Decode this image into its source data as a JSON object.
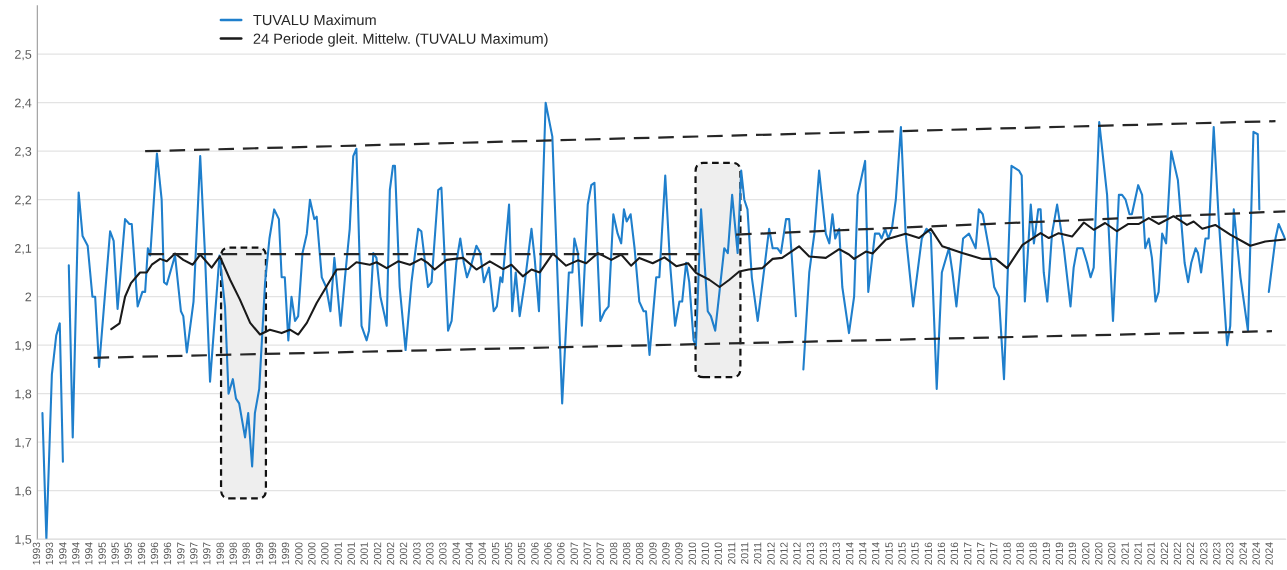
{
  "chart_data": {
    "type": "line",
    "xlim": [
      1993,
      2024.73
    ],
    "ylim": [
      1.5,
      2.6
    ],
    "yticks": [
      {
        "value": 1.5,
        "label": "1,5"
      },
      {
        "value": 1.6,
        "label": "1,6"
      },
      {
        "value": 1.7,
        "label": "1,7"
      },
      {
        "value": 1.8,
        "label": "1,8"
      },
      {
        "value": 1.9,
        "label": "1,9"
      },
      {
        "value": 2,
        "label": "2"
      },
      {
        "value": 2.1,
        "label": "2,1"
      },
      {
        "value": 2.2,
        "label": "2,2"
      },
      {
        "value": 2.3,
        "label": "2,3"
      },
      {
        "value": 2.4,
        "label": "2,4"
      },
      {
        "value": 2.5,
        "label": "2,5"
      }
    ],
    "xticks": [
      {
        "value": 1993,
        "label": "1993"
      },
      {
        "value": 1993.33,
        "label": "1993"
      },
      {
        "value": 1993.67,
        "label": "1994"
      },
      {
        "value": 1994,
        "label": "1994"
      },
      {
        "value": 1994.33,
        "label": "1994"
      },
      {
        "value": 1994.67,
        "label": "1995"
      },
      {
        "value": 1995,
        "label": "1995"
      },
      {
        "value": 1995.33,
        "label": "1995"
      },
      {
        "value": 1995.67,
        "label": "1996"
      },
      {
        "value": 1996,
        "label": "1996"
      },
      {
        "value": 1996.33,
        "label": "1996"
      },
      {
        "value": 1996.67,
        "label": "1997"
      },
      {
        "value": 1997,
        "label": "1997"
      },
      {
        "value": 1997.33,
        "label": "1997"
      },
      {
        "value": 1997.67,
        "label": "1998"
      },
      {
        "value": 1998,
        "label": "1998"
      },
      {
        "value": 1998.33,
        "label": "1998"
      },
      {
        "value": 1998.67,
        "label": "1999"
      },
      {
        "value": 1999,
        "label": "1999"
      },
      {
        "value": 1999.33,
        "label": "1999"
      },
      {
        "value": 1999.67,
        "label": "2000"
      },
      {
        "value": 2000,
        "label": "2000"
      },
      {
        "value": 2000.33,
        "label": "2000"
      },
      {
        "value": 2000.67,
        "label": "2001"
      },
      {
        "value": 2001,
        "label": "2001"
      },
      {
        "value": 2001.33,
        "label": "2001"
      },
      {
        "value": 2001.67,
        "label": "2002"
      },
      {
        "value": 2002,
        "label": "2002"
      },
      {
        "value": 2002.33,
        "label": "2002"
      },
      {
        "value": 2002.67,
        "label": "2003"
      },
      {
        "value": 2003,
        "label": "2003"
      },
      {
        "value": 2003.33,
        "label": "2003"
      },
      {
        "value": 2003.67,
        "label": "2004"
      },
      {
        "value": 2004,
        "label": "2004"
      },
      {
        "value": 2004.33,
        "label": "2004"
      },
      {
        "value": 2004.67,
        "label": "2005"
      },
      {
        "value": 2005,
        "label": "2005"
      },
      {
        "value": 2005.33,
        "label": "2005"
      },
      {
        "value": 2005.67,
        "label": "2006"
      },
      {
        "value": 2006,
        "label": "2006"
      },
      {
        "value": 2006.33,
        "label": "2006"
      },
      {
        "value": 2006.67,
        "label": "2007"
      },
      {
        "value": 2007,
        "label": "2007"
      },
      {
        "value": 2007.33,
        "label": "2007"
      },
      {
        "value": 2007.67,
        "label": "2008"
      },
      {
        "value": 2008,
        "label": "2008"
      },
      {
        "value": 2008.33,
        "label": "2008"
      },
      {
        "value": 2008.67,
        "label": "2009"
      },
      {
        "value": 2009,
        "label": "2009"
      },
      {
        "value": 2009.33,
        "label": "2009"
      },
      {
        "value": 2009.67,
        "label": "2010"
      },
      {
        "value": 2010,
        "label": "2010"
      },
      {
        "value": 2010.33,
        "label": "2010"
      },
      {
        "value": 2010.67,
        "label": "2011"
      },
      {
        "value": 2011,
        "label": "2011"
      },
      {
        "value": 2011.33,
        "label": "2011"
      },
      {
        "value": 2011.67,
        "label": "2012"
      },
      {
        "value": 2012,
        "label": "2012"
      },
      {
        "value": 2012.33,
        "label": "2012"
      },
      {
        "value": 2012.67,
        "label": "2013"
      },
      {
        "value": 2013,
        "label": "2013"
      },
      {
        "value": 2013.33,
        "label": "2013"
      },
      {
        "value": 2013.67,
        "label": "2014"
      },
      {
        "value": 2014,
        "label": "2014"
      },
      {
        "value": 2014.33,
        "label": "2014"
      },
      {
        "value": 2014.67,
        "label": "2015"
      },
      {
        "value": 2015,
        "label": "2015"
      },
      {
        "value": 2015.33,
        "label": "2015"
      },
      {
        "value": 2015.67,
        "label": "2016"
      },
      {
        "value": 2016,
        "label": "2016"
      },
      {
        "value": 2016.33,
        "label": "2016"
      },
      {
        "value": 2016.67,
        "label": "2017"
      },
      {
        "value": 2017,
        "label": "2017"
      },
      {
        "value": 2017.33,
        "label": "2017"
      },
      {
        "value": 2017.67,
        "label": "2018"
      },
      {
        "value": 2018,
        "label": "2018"
      },
      {
        "value": 2018.33,
        "label": "2018"
      },
      {
        "value": 2018.67,
        "label": "2019"
      },
      {
        "value": 2019,
        "label": "2019"
      },
      {
        "value": 2019.33,
        "label": "2019"
      },
      {
        "value": 2019.67,
        "label": "2020"
      },
      {
        "value": 2020,
        "label": "2020"
      },
      {
        "value": 2020.33,
        "label": "2020"
      },
      {
        "value": 2020.67,
        "label": "2021"
      },
      {
        "value": 2021,
        "label": "2021"
      },
      {
        "value": 2021.33,
        "label": "2021"
      },
      {
        "value": 2021.67,
        "label": "2022"
      },
      {
        "value": 2022,
        "label": "2022"
      },
      {
        "value": 2022.33,
        "label": "2022"
      },
      {
        "value": 2022.67,
        "label": "2023"
      },
      {
        "value": 2023,
        "label": "2023"
      },
      {
        "value": 2023.33,
        "label": "2023"
      },
      {
        "value": 2023.67,
        "label": "2024"
      },
      {
        "value": 2024,
        "label": "2024"
      },
      {
        "value": 2024.33,
        "label": "2024"
      }
    ],
    "grid": "y",
    "legend": "top left",
    "line_style": "solid",
    "series": [
      {
        "name": "TUVALU Maximum",
        "color": "#1f7fcc",
        "x": [
          1993.13,
          1993.23,
          1993.37,
          1993.48,
          1993.57,
          1993.65,
          1993.72,
          1993.8,
          1993.9,
          1994.05,
          1994.15,
          1994.28,
          1994.4,
          1994.47,
          1994.57,
          1994.85,
          1994.94,
          1995.04,
          1995.23,
          1995.34,
          1995.4,
          1995.55,
          1995.67,
          1995.74,
          1995.81,
          1995.87,
          1996.04,
          1996.16,
          1996.22,
          1996.29,
          1996.5,
          1996.65,
          1996.71,
          1996.8,
          1996.97,
          1997.14,
          1997.26,
          1997.39,
          1997.63,
          1997.77,
          1997.86,
          1997.97,
          1998.05,
          1998.13,
          1998.28,
          1998.36,
          1998.46,
          1998.53,
          1998.64,
          1998.79,
          1998.9,
          1999.02,
          1999.14,
          1999.21,
          1999.29,
          1999.38,
          1999.46,
          1999.55,
          1999.63,
          1999.74,
          1999.85,
          1999.93,
          2000.04,
          2000.1,
          2000.23,
          2000.34,
          2000.45,
          2000.55,
          2000.61,
          2000.71,
          2000.82,
          2000.94,
          2001.03,
          2001.11,
          2001.24,
          2001.37,
          2001.43,
          2001.54,
          2001.62,
          2001.72,
          2001.83,
          2001.88,
          2001.96,
          2002.04,
          2002.09,
          2002.21,
          2002.36,
          2002.51,
          2002.68,
          2002.76,
          2002.93,
          2003.02,
          2003.19,
          2003.27,
          2003.44,
          2003.53,
          2003.65,
          2003.75,
          2003.84,
          2003.92,
          2004.01,
          2004.16,
          2004.26,
          2004.35,
          2004.48,
          2004.6,
          2004.68,
          2004.77,
          2004.82,
          2004.99,
          2005.07,
          2005.16,
          2005.26,
          2005.39,
          2005.56,
          2005.64,
          2005.75,
          2005.92,
          2006.09,
          2006.34,
          2006.51,
          2006.6,
          2006.65,
          2006.74,
          2006.84,
          2006.99,
          2007.08,
          2007.16,
          2007.31,
          2007.42,
          2007.52,
          2007.64,
          2007.75,
          2007.84,
          2007.91,
          2007.98,
          2008.08,
          2008.18,
          2008.3,
          2008.41,
          2008.47,
          2008.56,
          2008.73,
          2008.81,
          2008.96,
          2009.08,
          2009.21,
          2009.32,
          2009.39,
          2009.49,
          2009.57,
          2009.68,
          2009.74,
          2009.87,
          2010.04,
          2010.12,
          2010.23,
          2010.46,
          2010.55,
          2010.66,
          2010.8,
          2010.89,
          2010.97,
          2011.05,
          2011.16,
          2011.31,
          2011.48,
          2011.6,
          2011.69,
          2011.81,
          2011.9,
          2012.03,
          2012.11,
          2012.28,
          2012.38,
          2012.47,
          2012.62,
          2012.75,
          2012.87,
          2013.04,
          2013.13,
          2013.21,
          2013.28,
          2013.38,
          2013.46,
          2013.63,
          2013.76,
          2013.85,
          2014.04,
          2014.12,
          2014.29,
          2014.4,
          2014.46,
          2014.55,
          2014.63,
          2014.72,
          2014.82,
          2014.95,
          2015.07,
          2015.26,
          2015.48,
          2015.6,
          2015.71,
          2015.86,
          2015.99,
          2016.17,
          2016.26,
          2016.36,
          2016.53,
          2016.68,
          2016.85,
          2016.93,
          2017.03,
          2017.23,
          2017.32,
          2017.44,
          2017.57,
          2017.76,
          2017.95,
          2018.02,
          2018.1,
          2018.25,
          2018.33,
          2018.44,
          2018.5,
          2018.58,
          2018.67,
          2018.79,
          2018.92,
          2019.09,
          2019.26,
          2019.34,
          2019.43,
          2019.57,
          2019.68,
          2019.77,
          2019.85,
          2019.99,
          2020.19,
          2020.34,
          2020.49,
          2020.57,
          2020.66,
          2020.76,
          2020.82,
          2020.98,
          2021.08,
          2021.16,
          2021.25,
          2021.33,
          2021.42,
          2021.5,
          2021.59,
          2021.69,
          2021.82,
          2021.99,
          2022.16,
          2022.25,
          2022.33,
          2022.44,
          2022.5,
          2022.58,
          2022.69,
          2022.77,
          2022.9,
          2023.02,
          2023.24,
          2023.32,
          2023.41,
          2023.58,
          2023.77,
          2023.91,
          2024.02,
          2024.06,
          2024.18,
          2024.3,
          2024.47,
          2024.55,
          2024.71
        ],
        "values": [
          1.76,
          1.5,
          1.84,
          1.92,
          1.945,
          1.66,
          null,
          2.065,
          1.71,
          2.215,
          2.125,
          2.105,
          2.0,
          2.0,
          1.855,
          2.135,
          2.115,
          1.975,
          2.16,
          2.15,
          2.15,
          1.98,
          2.01,
          2.01,
          2.1,
          2.085,
          2.295,
          2.2,
          2.03,
          2.025,
          2.085,
          1.97,
          1.96,
          1.885,
          1.99,
          2.29,
          2.09,
          1.825,
          2.085,
          1.98,
          1.8,
          1.83,
          1.79,
          1.78,
          1.71,
          1.76,
          1.65,
          1.76,
          1.81,
          2.03,
          2.12,
          2.18,
          2.16,
          2.04,
          2.04,
          1.91,
          2.0,
          1.95,
          1.96,
          2.09,
          2.13,
          2.2,
          2.16,
          2.165,
          2.04,
          2.02,
          1.97,
          2.08,
          2.03,
          1.94,
          2.04,
          2.14,
          2.29,
          2.305,
          1.94,
          1.91,
          1.93,
          2.09,
          2.08,
          2.0,
          1.96,
          1.94,
          2.22,
          2.27,
          2.27,
          2.02,
          1.89,
          2.03,
          2.14,
          2.135,
          2.02,
          2.03,
          2.22,
          2.225,
          1.93,
          1.95,
          2.07,
          2.12,
          2.07,
          2.04,
          2.06,
          2.105,
          2.09,
          2.03,
          2.06,
          1.97,
          1.98,
          2.04,
          2.03,
          2.19,
          1.97,
          2.05,
          1.96,
          2.03,
          2.14,
          2.08,
          1.97,
          2.4,
          2.33,
          1.78,
          2.05,
          2.05,
          2.12,
          2.09,
          1.94,
          2.19,
          2.23,
          2.235,
          1.95,
          1.97,
          1.98,
          2.17,
          2.13,
          2.11,
          2.18,
          2.155,
          2.17,
          2.1,
          1.99,
          1.97,
          1.97,
          1.88,
          2.04,
          2.04,
          2.25,
          2.07,
          1.94,
          1.99,
          1.99,
          2.07,
          2.03,
          1.91,
          1.9,
          2.18,
          1.97,
          1.96,
          1.93,
          2.1,
          2.09,
          2.21,
          2.09,
          2.26,
          2.2,
          2.18,
          2.04,
          1.95,
          2.06,
          2.14,
          2.1,
          2.1,
          2.09,
          2.16,
          2.16,
          1.96,
          null,
          1.85,
          2.05,
          2.13,
          2.26,
          2.13,
          2.11,
          2.17,
          2.12,
          2.14,
          2.02,
          1.925,
          2.0,
          2.21,
          2.28,
          2.01,
          2.13,
          2.13,
          2.12,
          2.14,
          2.12,
          2.14,
          2.2,
          2.35,
          2.13,
          1.98,
          2.12,
          2.14,
          2.13,
          1.81,
          2.05,
          2.1,
          2.05,
          1.98,
          2.12,
          2.13,
          2.1,
          2.18,
          2.17,
          2.08,
          2.02,
          2.0,
          1.83,
          2.27,
          2.26,
          2.25,
          1.99,
          2.19,
          2.11,
          2.18,
          2.18,
          2.05,
          1.99,
          2.13,
          2.19,
          2.1,
          1.98,
          2.06,
          2.1,
          2.1,
          2.07,
          2.04,
          2.06,
          2.36,
          2.21,
          1.95,
          2.21,
          2.21,
          2.2,
          2.17,
          2.17,
          2.23,
          2.21,
          2.1,
          2.12,
          2.08,
          1.99,
          2.01,
          2.13,
          2.11,
          2.3,
          2.24,
          2.07,
          2.03,
          2.07,
          2.1,
          2.09,
          2.05,
          2.12,
          2.12,
          2.35,
          2.17,
          1.9,
          1.94,
          2.18,
          2.04,
          1.93,
          2.34,
          2.335,
          2.18,
          null,
          2.01,
          2.12,
          2.15,
          2.12
        ]
      },
      {
        "name": "24 Periode gleit. Mittelw. (TUVALU Maximum)",
        "color": "#1a1a1a",
        "x": [
          1994.88,
          1995.09,
          1995.23,
          1995.38,
          1995.61,
          1995.78,
          1995.91,
          1996.12,
          1996.29,
          1996.5,
          1996.71,
          1996.95,
          1997.14,
          1997.43,
          1997.64,
          1997.9,
          1998.15,
          1998.41,
          1998.66,
          1998.91,
          1999.21,
          1999.42,
          1999.63,
          1999.85,
          2000.1,
          2000.35,
          2000.61,
          2000.9,
          2001.11,
          2001.45,
          2001.62,
          2001.88,
          2002.17,
          2002.47,
          2002.76,
          2002.93,
          2003.1,
          2003.4,
          2003.82,
          2004.16,
          2004.5,
          2004.84,
          2005.05,
          2005.34,
          2005.56,
          2005.77,
          2006.1,
          2006.44,
          2006.74,
          2006.95,
          2007.25,
          2007.59,
          2007.84,
          2008.09,
          2008.3,
          2008.64,
          2008.94,
          2009.24,
          2009.54,
          2009.74,
          2010.08,
          2010.34,
          2010.59,
          2010.84,
          2011.08,
          2011.43,
          2011.69,
          2011.93,
          2012.36,
          2012.62,
          2013.04,
          2013.38,
          2013.63,
          2013.76,
          2014.06,
          2014.23,
          2014.57,
          2015.07,
          2015.41,
          2015.71,
          2016.0,
          2016.51,
          2017.02,
          2017.36,
          2017.65,
          2018.04,
          2018.5,
          2018.71,
          2018.96,
          2019.3,
          2019.6,
          2019.85,
          2020.14,
          2020.44,
          2020.73,
          2021.0,
          2021.25,
          2021.5,
          2021.88,
          2022.22,
          2022.39,
          2022.61,
          2022.94,
          2023.32,
          2023.83,
          2024.21,
          2024.72
        ],
        "values": [
          1.933,
          1.945,
          2.0,
          2.028,
          2.05,
          2.05,
          2.066,
          2.078,
          2.073,
          2.089,
          2.076,
          2.066,
          2.087,
          2.06,
          2.083,
          2.035,
          1.994,
          1.946,
          1.922,
          1.932,
          1.925,
          1.932,
          1.922,
          1.946,
          1.987,
          2.021,
          2.056,
          2.057,
          2.071,
          2.066,
          2.071,
          2.059,
          2.073,
          2.066,
          2.078,
          2.069,
          2.056,
          2.076,
          2.08,
          2.056,
          2.073,
          2.057,
          2.066,
          2.042,
          2.056,
          2.05,
          2.089,
          2.064,
          2.075,
          2.069,
          2.09,
          2.076,
          2.087,
          2.064,
          2.08,
          2.069,
          2.081,
          2.063,
          2.069,
          2.049,
          2.035,
          2.02,
          2.035,
          2.052,
          2.056,
          2.059,
          2.078,
          2.08,
          2.104,
          2.083,
          2.08,
          2.098,
          2.087,
          2.078,
          2.093,
          2.089,
          2.118,
          2.13,
          2.121,
          2.14,
          2.104,
          2.09,
          2.078,
          2.078,
          2.059,
          2.107,
          2.131,
          2.121,
          2.131,
          2.124,
          2.153,
          2.138,
          2.152,
          2.135,
          2.15,
          2.15,
          2.162,
          2.15,
          2.166,
          2.148,
          2.155,
          2.14,
          2.148,
          2.128,
          2.105,
          2.114,
          2.118
        ]
      },
      {
        "color": "#262626",
        "line_style": "dashed",
        "x": [
          1995.74,
          2024.47
        ],
        "values": [
          2.3,
          2.362
        ]
      },
      {
        "color": "#262626",
        "line_style": "dashed",
        "x": [
          1994.43,
          2024.38
        ],
        "values": [
          1.874,
          1.929
        ]
      },
      {
        "color": "#262626",
        "line_style": "dashed",
        "x": [
          1995.82,
          2009.83
        ],
        "values": [
          2.088,
          2.088
        ]
      },
      {
        "color": "#262626",
        "line_style": "dashed",
        "x": [
          2010.76,
          2024.72
        ],
        "values": [
          2.128,
          2.176
        ]
      }
    ],
    "bands": [
      {
        "axis": "x",
        "from": 1997.67,
        "to": 1998.81,
        "color": "#eeeeee"
      },
      {
        "axis": "x",
        "from": 2009.73,
        "to": 2010.87,
        "color": "#eeeeee"
      }
    ]
  }
}
